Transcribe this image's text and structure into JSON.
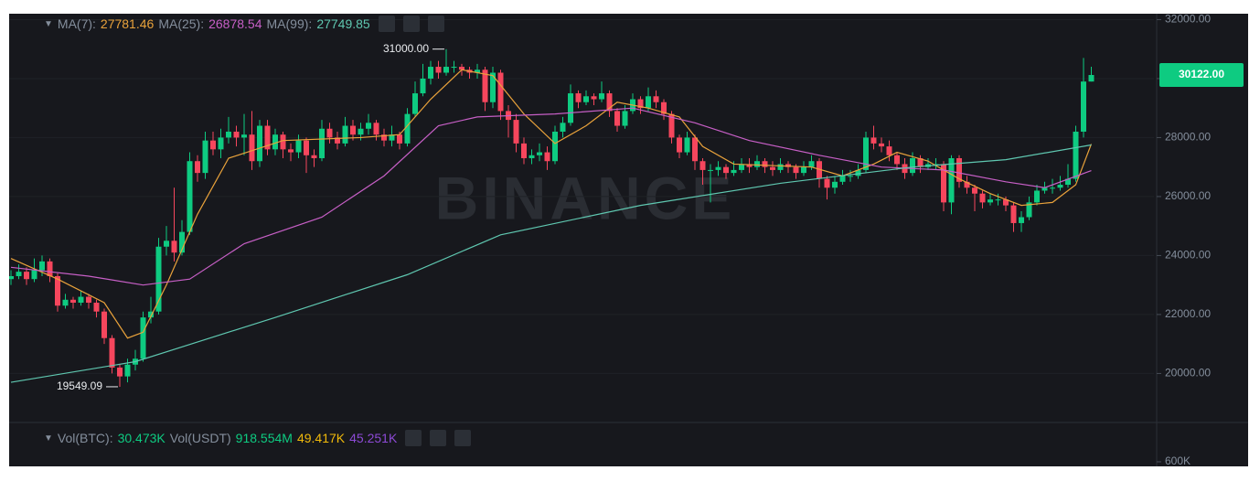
{
  "chart_data": {
    "type": "candlestick",
    "watermark": "BINANCE",
    "up_color": "#0ecb81",
    "down_color": "#f6465d",
    "ylim": [
      18400,
      32200
    ],
    "yticks": [
      {
        "value": 20000,
        "label": "20000.00"
      },
      {
        "value": 22000,
        "label": "22000.00"
      },
      {
        "value": 24000,
        "label": "24000.00"
      },
      {
        "value": 26000,
        "label": "26000.00"
      },
      {
        "value": 28000,
        "label": "28000.00"
      },
      {
        "value": 30000,
        "label": "30000.00"
      },
      {
        "value": 32000,
        "label": "32000.00"
      }
    ],
    "grid": true,
    "candles": {
      "open": [
        23200,
        23300,
        23450,
        23200,
        23500,
        23800,
        23300,
        22300,
        22500,
        22400,
        22600,
        22400,
        22100,
        21200,
        20200,
        19900,
        20300,
        20500,
        21900,
        22100,
        24300,
        24500,
        24100,
        24800,
        27200,
        26800,
        27900,
        27600,
        28000,
        28200,
        28000,
        28100,
        27200,
        28400,
        27600,
        28100,
        27600,
        27500,
        27900,
        27400,
        27300,
        28300,
        28000,
        27800,
        28400,
        28100,
        28300,
        28500,
        28100,
        27900,
        28100,
        27800,
        28800,
        29500,
        30000,
        30400,
        30200,
        30400,
        30400,
        30300,
        30200,
        30300,
        29200,
        30200,
        28900,
        28600,
        27800,
        27300,
        27400,
        27500,
        27200,
        28200,
        28500,
        29500,
        29200,
        29400,
        29300,
        29500,
        28900,
        28400,
        28900,
        29300,
        29000,
        29400,
        29200,
        28800,
        28000,
        27500,
        28000,
        27200,
        26900,
        26900,
        27000,
        26800,
        26900,
        27100,
        27000,
        27200,
        27000,
        26900,
        27100,
        27000,
        26800,
        27000,
        27200,
        26600,
        26300,
        26500,
        26700,
        26700,
        26900,
        28000,
        27800,
        27700,
        27400,
        27100,
        26800,
        27300,
        27000,
        27100,
        27100,
        25800,
        27300,
        26500,
        26300,
        26100,
        25800,
        25900,
        25900,
        25700,
        25100,
        25300,
        25800,
        26200,
        26300,
        26300,
        26400,
        26600,
        28200,
        29900
      ],
      "high": [
        23500,
        23700,
        23600,
        23900,
        24000,
        23900,
        23400,
        22700,
        22600,
        22800,
        22700,
        22500,
        22200,
        21300,
        20300,
        20500,
        20800,
        22100,
        22600,
        24600,
        25000,
        26300,
        25200,
        27500,
        27400,
        28200,
        28200,
        28300,
        28700,
        28400,
        28800,
        28900,
        28600,
        28600,
        28300,
        28200,
        27800,
        28100,
        28000,
        27600,
        28600,
        28500,
        28200,
        28700,
        28600,
        28500,
        28800,
        28600,
        28300,
        28400,
        28200,
        29000,
        29900,
        30500,
        30600,
        30600,
        31000,
        30600,
        30500,
        30400,
        30500,
        30400,
        30400,
        30300,
        29100,
        28800,
        28000,
        27600,
        27800,
        27700,
        28400,
        28700,
        29800,
        29600,
        29600,
        29500,
        29900,
        29600,
        29000,
        29100,
        29500,
        29400,
        29700,
        29600,
        29300,
        28900,
        28100,
        28200,
        28100,
        27300,
        27100,
        27200,
        27100,
        27200,
        27300,
        27300,
        27400,
        27300,
        27200,
        27300,
        27200,
        27100,
        27200,
        27400,
        27300,
        26700,
        26700,
        26900,
        26900,
        27100,
        28200,
        28400,
        28000,
        27900,
        27500,
        27300,
        27500,
        27400,
        27300,
        27300,
        27200,
        27400,
        27400,
        26700,
        26400,
        26200,
        26100,
        26100,
        26000,
        25800,
        25500,
        26000,
        26400,
        26500,
        26600,
        26700,
        27100,
        28400,
        30700,
        30400
      ],
      "low": [
        23000,
        23200,
        23000,
        23100,
        23300,
        23100,
        22100,
        22200,
        22200,
        22300,
        22200,
        21900,
        21000,
        20000,
        19549.09,
        19700,
        20100,
        20400,
        21700,
        22000,
        24000,
        23800,
        24000,
        24700,
        26500,
        26600,
        27400,
        27300,
        27800,
        27700,
        27400,
        26900,
        27000,
        27400,
        27400,
        27300,
        27200,
        27300,
        26800,
        27000,
        27200,
        27800,
        27600,
        27700,
        27900,
        27900,
        28100,
        27900,
        27700,
        27700,
        27600,
        27700,
        28700,
        29400,
        29800,
        30000,
        30100,
        30200,
        30100,
        30000,
        30000,
        28900,
        29000,
        28600,
        28000,
        27500,
        27100,
        27100,
        27200,
        26900,
        27100,
        28000,
        28400,
        29000,
        29100,
        29100,
        29200,
        28700,
        28200,
        28300,
        28800,
        28800,
        28900,
        29000,
        28600,
        27800,
        27300,
        27400,
        26900,
        26400,
        25800,
        26700,
        26600,
        26700,
        26800,
        26800,
        26900,
        26800,
        26700,
        26800,
        26800,
        26600,
        26700,
        26900,
        26300,
        25900,
        26100,
        26400,
        26500,
        26600,
        26800,
        27600,
        27500,
        27200,
        26900,
        26600,
        26700,
        26800,
        26900,
        26900,
        25500,
        25400,
        26300,
        26100,
        25500,
        25600,
        25700,
        25700,
        25500,
        24800,
        24800,
        25200,
        25700,
        26100,
        26100,
        26200,
        26300,
        26500,
        28000,
        29900
      ],
      "close": [
        23300,
        23450,
        23200,
        23500,
        23800,
        23300,
        22300,
        22500,
        22400,
        22600,
        22400,
        22100,
        21200,
        20200,
        19900,
        20300,
        20500,
        21900,
        22100,
        24300,
        24500,
        24100,
        24800,
        27200,
        26800,
        27900,
        27600,
        28000,
        28200,
        28000,
        28100,
        27200,
        28400,
        27600,
        28100,
        27600,
        27500,
        27900,
        27400,
        27300,
        28300,
        28000,
        27800,
        28400,
        28100,
        28300,
        28500,
        28100,
        27900,
        28100,
        27800,
        28800,
        29500,
        30000,
        30400,
        30200,
        30400,
        30400,
        30300,
        30200,
        30300,
        29200,
        30200,
        28900,
        28600,
        27800,
        27300,
        27400,
        27500,
        27200,
        28200,
        28500,
        29500,
        29200,
        29400,
        29300,
        29500,
        28900,
        28400,
        28900,
        29300,
        29000,
        29400,
        29200,
        28800,
        28000,
        27500,
        28000,
        27200,
        26900,
        26900,
        27000,
        26800,
        26900,
        27100,
        27000,
        27200,
        27000,
        26900,
        27100,
        27000,
        26800,
        27000,
        27200,
        26600,
        26300,
        26500,
        26700,
        26700,
        26900,
        28000,
        27800,
        27700,
        27400,
        27100,
        26800,
        27300,
        27000,
        27100,
        27100,
        25800,
        27300,
        26500,
        26300,
        26100,
        25800,
        25900,
        25900,
        25700,
        25100,
        25300,
        25800,
        26200,
        26300,
        26300,
        26400,
        26600,
        28200,
        29900,
        30122
      ]
    },
    "ma_lines": [
      {
        "name": "MA(7):",
        "color": "#e9a23b",
        "x": [
          0,
          6,
          12,
          15,
          17,
          20,
          24,
          28,
          35,
          45,
          50,
          54,
          58,
          62,
          66,
          70,
          74,
          78,
          82,
          86,
          89,
          93,
          103,
          107,
          111,
          114,
          118,
          122,
          126,
          130,
          134,
          137,
          139
        ],
        "values": [
          23900,
          23200,
          22400,
          21200,
          21400,
          23000,
          25400,
          27300,
          27900,
          28000,
          28100,
          29300,
          30300,
          30100,
          28800,
          27800,
          28400,
          29200,
          29000,
          28700,
          27700,
          27100,
          27000,
          26700,
          27100,
          27500,
          27200,
          26600,
          26100,
          25700,
          25800,
          26400,
          27781.46
        ]
      },
      {
        "name": "MA(25):",
        "color": "#c75fc6",
        "x": [
          0,
          10,
          17,
          23,
          30,
          40,
          48,
          55,
          60,
          70,
          80,
          88,
          95,
          104,
          112,
          120,
          128,
          133,
          139
        ],
        "values": [
          23600,
          23300,
          23000,
          23200,
          24400,
          25300,
          26700,
          28400,
          28700,
          28800,
          29000,
          28500,
          27900,
          27400,
          27000,
          26900,
          26500,
          26300,
          26878.54
        ]
      },
      {
        "name": "MA(99):",
        "color": "#5fc7b0",
        "x": [
          0,
          16,
          34,
          51,
          63,
          81,
          99,
          116,
          128,
          139
        ],
        "values": [
          19700,
          20400,
          21900,
          23350,
          24700,
          25700,
          26450,
          27000,
          27250,
          27749.85
        ]
      }
    ],
    "high_marker": {
      "index": 56,
      "value": 31000,
      "label": "31000.00"
    },
    "low_marker": {
      "index": 14,
      "value": 19549.09,
      "label": "19549.09"
    },
    "last_price": {
      "value": 30122,
      "label": "30122.00"
    },
    "volume_header": [
      {
        "text": "Vol(BTC):",
        "color": "#848e9c"
      },
      {
        "text": "30.473K",
        "color": "#0ecb81"
      },
      {
        "text": "Vol(USDT)",
        "color": "#848e9c"
      },
      {
        "text": "918.554M",
        "color": "#0ecb81"
      },
      {
        "text": "49.417K",
        "color": "#f0b90b"
      },
      {
        "text": "45.251K",
        "color": "#8d4ad6"
      }
    ],
    "volume_yticks": [
      {
        "value": 600000,
        "label": "600K"
      }
    ]
  }
}
